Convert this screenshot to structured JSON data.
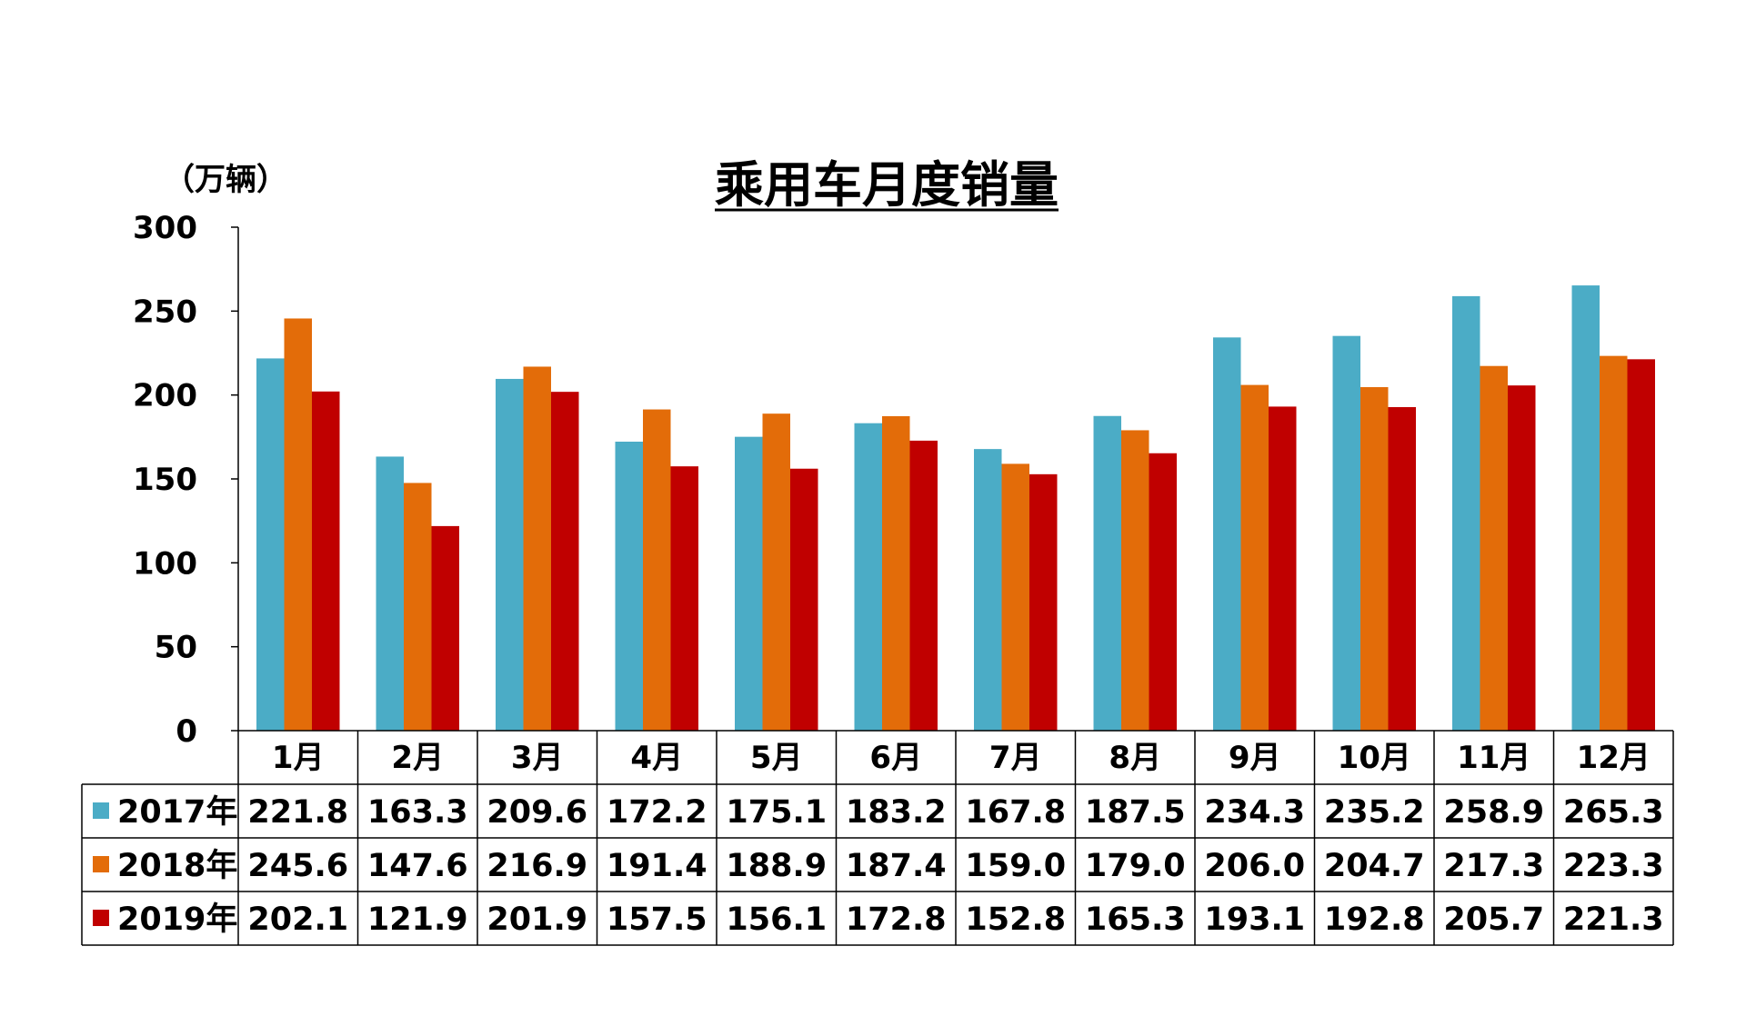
{
  "chart_data": {
    "type": "bar",
    "title": "乘用车月度销量",
    "unit_label": "（万辆）",
    "ylim": [
      0,
      300
    ],
    "yticks": [
      0,
      50,
      100,
      150,
      200,
      250,
      300
    ],
    "grid": false,
    "legend": "table-left",
    "categories": [
      "1月",
      "2月",
      "3月",
      "4月",
      "5月",
      "6月",
      "7月",
      "8月",
      "9月",
      "10月",
      "11月",
      "12月"
    ],
    "series": [
      {
        "name": "2017年",
        "color": "#4BACC6",
        "values": [
          221.8,
          163.3,
          209.6,
          172.2,
          175.1,
          183.2,
          167.8,
          187.5,
          234.3,
          235.2,
          258.9,
          265.3
        ]
      },
      {
        "name": "2018年",
        "color": "#E36C09",
        "values": [
          245.6,
          147.6,
          216.9,
          191.4,
          188.9,
          187.4,
          159.0,
          179.0,
          206.0,
          204.7,
          217.3,
          223.3
        ]
      },
      {
        "name": "2019年",
        "color": "#C00000",
        "values": [
          202.1,
          121.9,
          201.9,
          157.5,
          156.1,
          172.8,
          152.8,
          165.3,
          193.1,
          192.8,
          205.7,
          221.3
        ]
      }
    ]
  }
}
